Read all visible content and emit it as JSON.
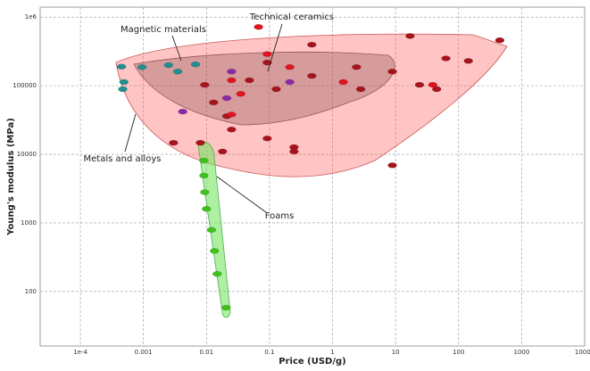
{
  "chart_data": {
    "type": "scatter",
    "x_label": "Price (USD/g)",
    "y_label": "Young's modulus (MPa)",
    "xscale": "log",
    "yscale": "log",
    "grid": true,
    "xlim": [
      2.3e-05,
      10000
    ],
    "ylim": [
      16,
      1400000
    ],
    "xticks": [
      {
        "value": 0.0001,
        "label": "1e-4"
      },
      0.001,
      0.01,
      0.1,
      1,
      10,
      100,
      1000,
      10000
    ],
    "yticks": [
      {
        "value": 1000000,
        "label": "1e6"
      },
      100000,
      10000,
      1000,
      100
    ],
    "annotations": [
      "Magnetic materials",
      "Technical ceramics",
      "Metals and alloys",
      "Foams"
    ],
    "series": [
      {
        "color": "#a8141c",
        "x": [
          0.003,
          0.008,
          0.018,
          0.025,
          0.092,
          0.245,
          0.128,
          0.47,
          2.4,
          2.8,
          8.9,
          24,
          45,
          63,
          143,
          450,
          0.47,
          17,
          8.9,
          0.245,
          0.0094,
          0.013,
          0.021,
          0.048,
          0.092
        ],
        "values": [
          14700,
          14700,
          11000,
          23000,
          17000,
          11000,
          89000,
          139000,
          187000,
          89000,
          161000,
          103000,
          89000,
          250000,
          230000,
          460000,
          396000,
          530000,
          6900,
          12700,
          103000,
          57000,
          36000,
          120000,
          218000
        ]
      },
      {
        "color": "#e0141e",
        "x": [
          0.025,
          0.035,
          0.092,
          0.067,
          0.21,
          1.48,
          39,
          0.025
        ],
        "values": [
          38000,
          76000,
          290000,
          720000,
          187000,
          113000,
          103000,
          120000
        ]
      },
      {
        "color": "#1f8f92",
        "x": [
          0.00045,
          0.00049,
          0.00095,
          0.0025,
          0.0067,
          0.0035,
          0.00047
        ],
        "values": [
          190000,
          113000,
          187000,
          200000,
          205000,
          161000,
          89000
        ]
      },
      {
        "color": "#8a2aa8",
        "x": [
          0.021,
          0.0042,
          0.21,
          0.025
        ],
        "values": [
          66000,
          42000,
          113000,
          161000
        ]
      },
      {
        "color": "#3fc21c",
        "x": [
          0.0091,
          0.0091,
          0.0094,
          0.01,
          0.012,
          0.0134,
          0.0148,
          0.0205
        ],
        "values": [
          8100,
          4900,
          2800,
          1600,
          790,
          390,
          180,
          58
        ]
      }
    ]
  }
}
